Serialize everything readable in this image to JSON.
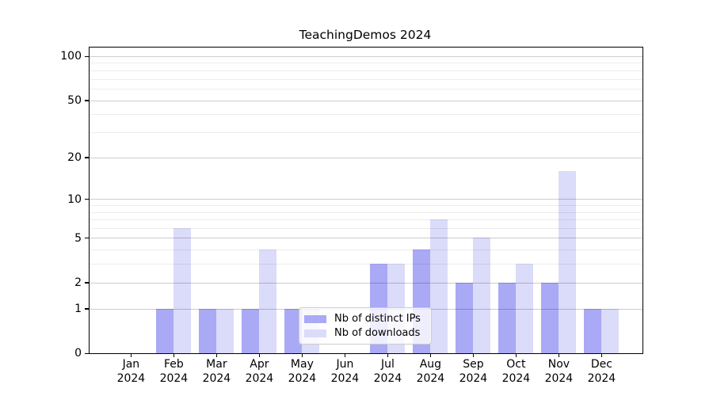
{
  "chart_data": {
    "type": "bar",
    "title": "TeachingDemos 2024",
    "categories": [
      "Jan",
      "Feb",
      "Mar",
      "Apr",
      "May",
      "Jun",
      "Jul",
      "Aug",
      "Sep",
      "Oct",
      "Nov",
      "Dec"
    ],
    "x_year_label": "2024",
    "series": [
      {
        "name": "Nb of distinct IPs",
        "color": "#a9a9f5",
        "values": [
          0,
          1,
          1,
          1,
          1,
          0,
          3,
          4,
          2,
          2,
          2,
          1
        ]
      },
      {
        "name": "Nb of downloads",
        "color": "#dbdbfa",
        "values": [
          0,
          6,
          1,
          4,
          1,
          0,
          3,
          7,
          5,
          3,
          16,
          1
        ]
      }
    ],
    "yscale": "log1p",
    "ylim": [
      0,
      113
    ],
    "y_major_ticks": [
      0,
      1,
      2,
      5,
      10,
      20,
      50,
      100
    ],
    "y_minor_gridlines": [
      3,
      4,
      6,
      7,
      8,
      9,
      30,
      40,
      60,
      70,
      80,
      90
    ],
    "grid": true,
    "legend_position": "inside-bottom-left-of-center",
    "style": {
      "spine_color": "#000000",
      "grid_major_color": "#c9c9c9",
      "grid_minor_color": "#ececec",
      "legend_border_color": "#cccccc",
      "text_color": "#000000"
    }
  }
}
